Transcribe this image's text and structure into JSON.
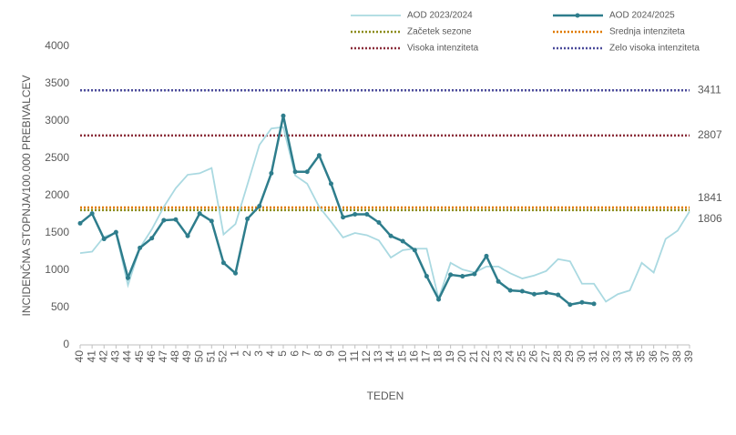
{
  "chart_data": {
    "type": "line",
    "y_label": "INCIDENČNA  STOPNJA/100.000  PREBIVALCEV",
    "x_label": "TEDEN",
    "categories": [
      "40",
      "41",
      "42",
      "43",
      "44",
      "45",
      "46",
      "47",
      "48",
      "49",
      "50",
      "51",
      "52",
      "1",
      "2",
      "3",
      "4",
      "5",
      "6",
      "7",
      "8",
      "9",
      "10",
      "11",
      "12",
      "13",
      "14",
      "15",
      "16",
      "17",
      "18",
      "19",
      "20",
      "21",
      "22",
      "23",
      "24",
      "25",
      "26",
      "27",
      "28",
      "29",
      "30",
      "31",
      "32",
      "33",
      "34",
      "35",
      "36",
      "37",
      "38",
      "39"
    ],
    "series": [
      {
        "name": "AOD 2023/2024",
        "color": "#aad9e1",
        "markers": false,
        "values": [
          1230,
          1250,
          1450,
          1500,
          800,
          1300,
          1550,
          1850,
          2100,
          2280,
          2300,
          2370,
          1480,
          1620,
          2150,
          2680,
          2900,
          2920,
          2270,
          2160,
          1850,
          1650,
          1440,
          1500,
          1470,
          1400,
          1170,
          1270,
          1290,
          1290,
          620,
          1100,
          1010,
          970,
          1050,
          1050,
          960,
          890,
          930,
          990,
          1150,
          1120,
          820,
          820,
          580,
          680,
          730,
          1100,
          970,
          1420,
          1530,
          1790
        ]
      },
      {
        "name": "AOD 2024/2025",
        "color": "#2e7d8c",
        "markers": true,
        "values": [
          1630,
          1760,
          1420,
          1510,
          900,
          1300,
          1430,
          1670,
          1680,
          1460,
          1760,
          1660,
          1100,
          960,
          1690,
          1860,
          2300,
          3070,
          2320,
          2320,
          2540,
          2160,
          1710,
          1750,
          1750,
          1640,
          1460,
          1390,
          1270,
          920,
          610,
          940,
          920,
          950,
          1190,
          850,
          730,
          720,
          680,
          700,
          670,
          540,
          570,
          550,
          null,
          null,
          null,
          null,
          null,
          null,
          null,
          null
        ]
      }
    ],
    "thresholds": [
      {
        "name": "Začetek sezone",
        "value": 1806,
        "color": "#8c8c1a"
      },
      {
        "name": "Srednja intenziteta",
        "value": 1841,
        "color": "#e07b00"
      },
      {
        "name": "Visoka intenziteta",
        "value": 2807,
        "color": "#8b2e3a"
      },
      {
        "name": "Zelo visoka intenziteta",
        "value": 3411,
        "color": "#4b4b9a"
      }
    ],
    "ylim": [
      0,
      4000
    ],
    "yticks": [
      0,
      500,
      1000,
      1500,
      2000,
      2500,
      3000,
      3500,
      4000
    ],
    "grid": false
  }
}
